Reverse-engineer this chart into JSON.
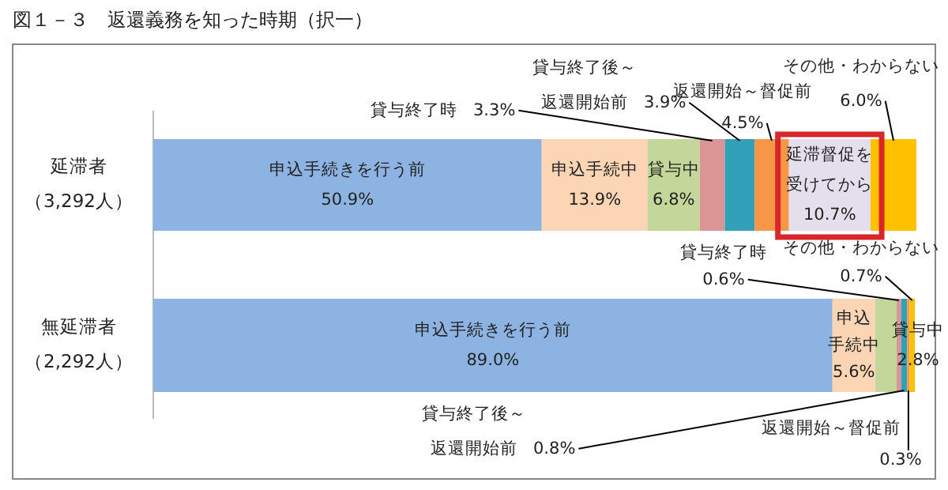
{
  "chart_data": {
    "type": "bar",
    "orientation": "horizontal",
    "stacked": true,
    "title": "図１－３　返還義務を知った時期（択一）",
    "categories": [
      "延滞者（3,292人）",
      "無延滞者（2,292人）"
    ],
    "xlim": [
      0,
      100
    ],
    "legend": false,
    "series": [
      {
        "name": "申込手続きを行う前",
        "color": "#8db3e2",
        "values": [
          50.9,
          89.0
        ],
        "value_labels": [
          "50.9%",
          "89.0%"
        ]
      },
      {
        "name": "申込手続中",
        "color": "#fcd5b4",
        "values": [
          13.9,
          5.6
        ],
        "value_labels": [
          "13.9%",
          "5.6%"
        ]
      },
      {
        "name": "貸与中",
        "color": "#c4d79b",
        "values": [
          6.8,
          2.8
        ],
        "value_labels": [
          "6.8%",
          "2.8%"
        ]
      },
      {
        "name": "貸与終了時",
        "color": "#da9694",
        "values": [
          3.3,
          0.6
        ],
        "value_labels": [
          "3.3%",
          "0.6%"
        ]
      },
      {
        "name": "貸与終了後～返還開始前",
        "color": "#31a0b8",
        "values": [
          3.9,
          0.8
        ],
        "value_labels": [
          "3.9%",
          "0.8%"
        ]
      },
      {
        "name": "返還開始～督促前",
        "color": "#f79646",
        "values": [
          4.5,
          0.3
        ],
        "value_labels": [
          "4.5%",
          "0.3%"
        ]
      },
      {
        "name": "延滞督促を受けてから",
        "color": "#e4dfec",
        "values": [
          10.7,
          null
        ],
        "value_labels": [
          "10.7%",
          null
        ]
      },
      {
        "name": "その他・わからない",
        "color": "#ffc000",
        "values": [
          6.0,
          0.7
        ],
        "value_labels": [
          "6.0%",
          "0.7%"
        ]
      }
    ]
  }
}
